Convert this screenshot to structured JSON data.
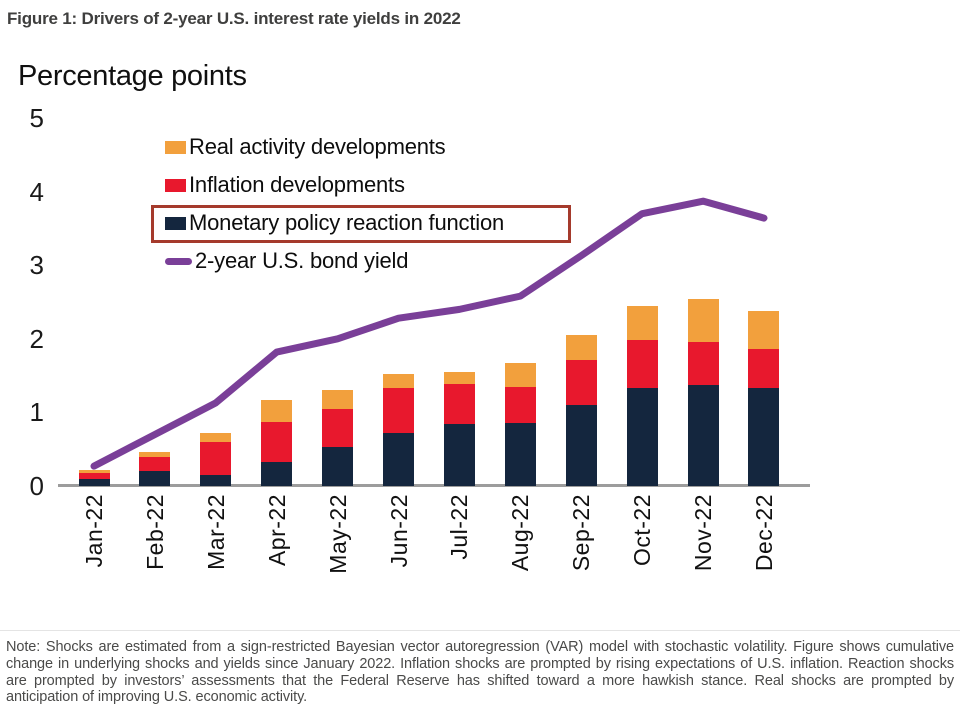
{
  "figure": {
    "title": "Figure 1: Drivers of 2-year U.S. interest rate yields in 2022",
    "axis_title": "Percentage points",
    "note": "Note: Shocks are estimated from a sign-restricted Bayesian vector autoregression (VAR) model with stochastic volatility. Figure shows cumulative change in underlying shocks and yields since January 2022. Inflation shocks are prompted by rising expectations of U.S. inflation. Reaction shocks are prompted by investors’ assessments that the Federal Reserve has shifted toward a more hawkish stance. Real shocks are prompted by anticipation of improving U.S. economic activity."
  },
  "chart_data": {
    "type": "bar",
    "subtype": "stacked-bar-with-line-overlay",
    "title": "Figure 1: Drivers of 2-year U.S. interest rate yields in 2022",
    "xlabel": "",
    "ylabel": "Percentage points",
    "ylim": [
      0,
      5
    ],
    "yticks": [
      0,
      1,
      2,
      3,
      4,
      5
    ],
    "grid": false,
    "legend_position": "top-left-inside-plot",
    "categories": [
      "Jan-22",
      "Feb-22",
      "Mar-22",
      "Apr-22",
      "May-22",
      "Jun-22",
      "Jul-22",
      "Aug-22",
      "Sep-22",
      "Oct-22",
      "Nov-22",
      "Dec-22"
    ],
    "series": [
      {
        "name": "Monetary policy reaction function",
        "color": "#14263e",
        "values": [
          0.1,
          0.2,
          0.15,
          0.33,
          0.53,
          0.72,
          0.84,
          0.86,
          1.1,
          1.33,
          1.37,
          1.33
        ]
      },
      {
        "name": "Inflation developments",
        "color": "#e8182d",
        "values": [
          0.07,
          0.19,
          0.45,
          0.54,
          0.52,
          0.61,
          0.55,
          0.48,
          0.61,
          0.66,
          0.59,
          0.53
        ]
      },
      {
        "name": "Real activity developments",
        "color": "#f2a03d",
        "values": [
          0.05,
          0.07,
          0.12,
          0.3,
          0.25,
          0.19,
          0.16,
          0.33,
          0.34,
          0.46,
          0.58,
          0.52
        ]
      }
    ],
    "line_series": {
      "name": "2-year U.S. bond yield",
      "color": "#7a3f98",
      "values": [
        0.27,
        0.7,
        1.13,
        1.82,
        2.0,
        2.28,
        2.4,
        2.58,
        3.13,
        3.7,
        3.87,
        3.64
      ]
    },
    "legend": [
      "Real activity developments",
      "Inflation developments",
      "Monetary policy reaction function",
      "2-year U.S. bond yield"
    ],
    "highlight_box": {
      "around": "Monetary policy reaction function",
      "color": "#a53a2c"
    }
  }
}
